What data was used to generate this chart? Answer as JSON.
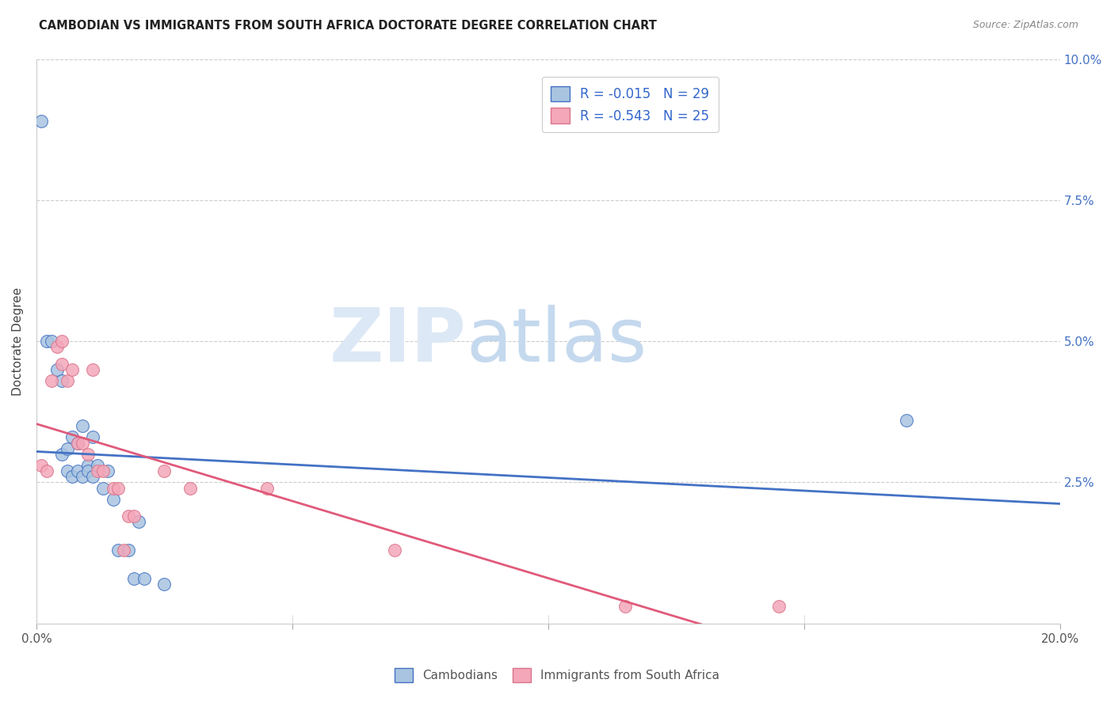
{
  "title": "CAMBODIAN VS IMMIGRANTS FROM SOUTH AFRICA DOCTORATE DEGREE CORRELATION CHART",
  "source": "Source: ZipAtlas.com",
  "ylabel_label": "Doctorate Degree",
  "xmin": 0.0,
  "xmax": 0.2,
  "ymin": 0.0,
  "ymax": 0.1,
  "xticks": [
    0.0,
    0.05,
    0.1,
    0.15,
    0.2
  ],
  "xtick_labels": [
    "0.0%",
    "",
    "",
    "",
    "20.0%"
  ],
  "yticks": [
    0.0,
    0.025,
    0.05,
    0.075,
    0.1
  ],
  "ytick_labels": [
    "",
    "2.5%",
    "5.0%",
    "7.5%",
    "10.0%"
  ],
  "legend_r1": "-0.015",
  "legend_n1": "29",
  "legend_r2": "-0.543",
  "legend_n2": "25",
  "color_cambodian": "#a8c4e0",
  "color_sa": "#f4a7b9",
  "color_line_cambodian": "#4472c4",
  "color_line_sa": "#e05a7a",
  "watermark_zip": "ZIP",
  "watermark_atlas": "atlas",
  "cambodian_x": [
    0.001,
    0.002,
    0.003,
    0.004,
    0.005,
    0.005,
    0.006,
    0.006,
    0.007,
    0.007,
    0.008,
    0.008,
    0.009,
    0.009,
    0.01,
    0.01,
    0.011,
    0.011,
    0.012,
    0.013,
    0.014,
    0.015,
    0.016,
    0.018,
    0.019,
    0.02,
    0.021,
    0.025,
    0.17
  ],
  "cambodian_y": [
    0.089,
    0.05,
    0.05,
    0.045,
    0.043,
    0.03,
    0.031,
    0.027,
    0.033,
    0.026,
    0.032,
    0.027,
    0.035,
    0.026,
    0.028,
    0.027,
    0.033,
    0.026,
    0.028,
    0.024,
    0.027,
    0.022,
    0.013,
    0.013,
    0.008,
    0.018,
    0.008,
    0.007,
    0.036
  ],
  "sa_x": [
    0.001,
    0.002,
    0.003,
    0.004,
    0.005,
    0.005,
    0.006,
    0.007,
    0.008,
    0.009,
    0.01,
    0.011,
    0.012,
    0.013,
    0.015,
    0.016,
    0.017,
    0.018,
    0.019,
    0.025,
    0.03,
    0.045,
    0.07,
    0.115,
    0.145
  ],
  "sa_y": [
    0.028,
    0.027,
    0.043,
    0.049,
    0.05,
    0.046,
    0.043,
    0.045,
    0.032,
    0.032,
    0.03,
    0.045,
    0.027,
    0.027,
    0.024,
    0.024,
    0.013,
    0.019,
    0.019,
    0.027,
    0.024,
    0.024,
    0.013,
    0.003,
    0.003
  ]
}
